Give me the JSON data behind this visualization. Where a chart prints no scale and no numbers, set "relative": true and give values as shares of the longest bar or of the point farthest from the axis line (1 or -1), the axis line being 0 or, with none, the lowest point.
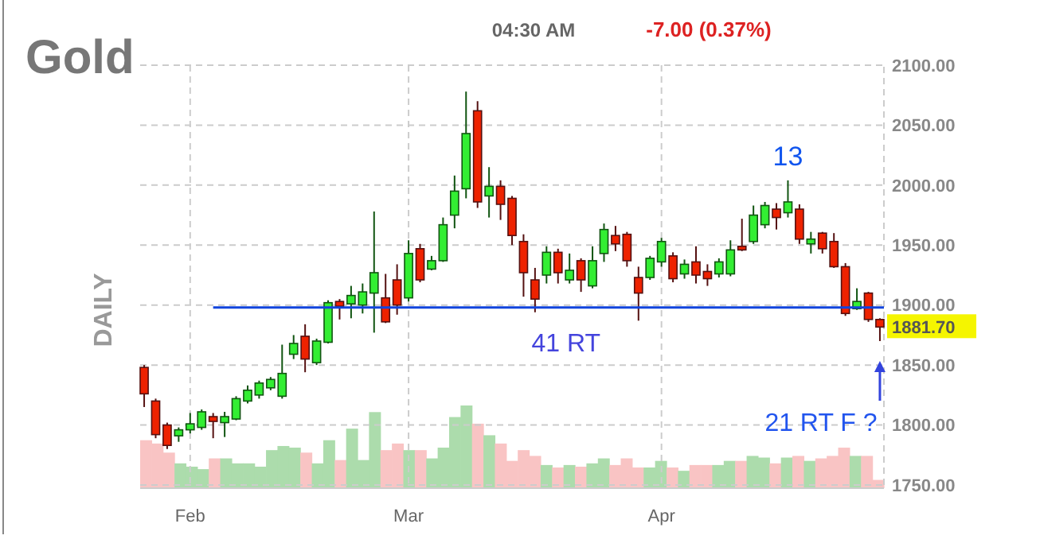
{
  "chart_data": [
    {
      "type": "candlestick",
      "title": "Gold",
      "subtitle": "04:30 AM",
      "categories": [
        null,
        null,
        null,
        null,
        "Feb",
        null,
        null,
        null,
        null,
        null,
        null,
        null,
        null,
        null,
        null,
        null,
        null,
        null,
        null,
        null,
        null,
        null,
        null,
        "Mar",
        null,
        null,
        null,
        null,
        null,
        null,
        null,
        null,
        null,
        null,
        null,
        null,
        null,
        null,
        null,
        null,
        null,
        null,
        null,
        null,
        null,
        "Apr",
        null,
        null,
        null,
        null,
        null,
        null,
        null,
        null,
        null,
        null,
        null,
        null,
        null,
        null,
        null,
        null,
        null,
        null,
        null
      ],
      "ohlc": [
        [
          1848,
          1850,
          1815,
          1826
        ],
        [
          1820,
          1822,
          1789,
          1792
        ],
        [
          1800,
          1802,
          1780,
          1783
        ],
        [
          1791,
          1798,
          1786,
          1796
        ],
        [
          1796,
          1810,
          1793,
          1801
        ],
        [
          1798,
          1813,
          1796,
          1811
        ],
        [
          1807,
          1810,
          1789,
          1803
        ],
        [
          1802,
          1811,
          1790,
          1807
        ],
        [
          1805,
          1824,
          1804,
          1822
        ],
        [
          1820,
          1833,
          1818,
          1829
        ],
        [
          1825,
          1837,
          1822,
          1835
        ],
        [
          1831,
          1840,
          1829,
          1838
        ],
        [
          1824,
          1867,
          1822,
          1843
        ],
        [
          1859,
          1875,
          1855,
          1868
        ],
        [
          1874,
          1884,
          1844,
          1855
        ],
        [
          1852,
          1872,
          1850,
          1870
        ],
        [
          1869,
          1904,
          1868,
          1902
        ],
        [
          1903,
          1905,
          1888,
          1899
        ],
        [
          1901,
          1916,
          1889,
          1908
        ],
        [
          1900,
          1918,
          1893,
          1911
        ],
        [
          1910,
          1978,
          1877,
          1927
        ],
        [
          1906,
          1926,
          1885,
          1886
        ],
        [
          1921,
          1934,
          1892,
          1900
        ],
        [
          1906,
          1954,
          1903,
          1943
        ],
        [
          1947,
          1951,
          1919,
          1921
        ],
        [
          1930,
          1941,
          1929,
          1937
        ],
        [
          1937,
          1973,
          1936,
          1967
        ],
        [
          1975,
          2008,
          1964,
          1995
        ],
        [
          1997,
          2078,
          1989,
          2043
        ],
        [
          2062,
          2070,
          1981,
          1986
        ],
        [
          1991,
          2015,
          1973,
          1999
        ],
        [
          1999,
          2004,
          1971,
          1984
        ],
        [
          1989,
          1991,
          1950,
          1958
        ],
        [
          1953,
          1959,
          1907,
          1927
        ],
        [
          1921,
          1931,
          1894,
          1905
        ],
        [
          1925,
          1949,
          1918,
          1944
        ],
        [
          1944,
          1947,
          1918,
          1927
        ],
        [
          1921,
          1943,
          1918,
          1929
        ],
        [
          1937,
          1939,
          1911,
          1921
        ],
        [
          1916,
          1949,
          1914,
          1937
        ],
        [
          1943,
          1968,
          1936,
          1963
        ],
        [
          1958,
          1966,
          1945,
          1951
        ],
        [
          1959,
          1961,
          1932,
          1937
        ],
        [
          1923,
          1932,
          1887,
          1910
        ],
        [
          1923,
          1941,
          1921,
          1939
        ],
        [
          1936,
          1956,
          1932,
          1953
        ],
        [
          1941,
          1944,
          1919,
          1922
        ],
        [
          1926,
          1938,
          1922,
          1934
        ],
        [
          1936,
          1949,
          1918,
          1925
        ],
        [
          1928,
          1934,
          1916,
          1922
        ],
        [
          1926,
          1939,
          1923,
          1936
        ],
        [
          1926,
          1954,
          1924,
          1946
        ],
        [
          1949,
          1972,
          1945,
          1946
        ],
        [
          1953,
          1983,
          1951,
          1975
        ],
        [
          1967,
          1986,
          1964,
          1983
        ],
        [
          1980,
          1985,
          1963,
          1973
        ],
        [
          1977,
          2004,
          1973,
          1986
        ],
        [
          1980,
          1984,
          1951,
          1955
        ],
        [
          1951,
          1961,
          1943,
          1955
        ],
        [
          1960,
          1961,
          1943,
          1947
        ],
        [
          1953,
          1960,
          1931,
          1932
        ],
        [
          1932,
          1935,
          1891,
          1893
        ],
        [
          1897,
          1914,
          1896,
          1903
        ],
        [
          1910,
          1911,
          1886,
          1888
        ],
        [
          1888,
          1889,
          1870,
          1881.7
        ]
      ],
      "colors": [
        "#ee2200",
        "#ee2200",
        "#ee2200",
        "#33ee33",
        "#33ee33",
        "#33ee33",
        "#ee2200",
        "#33ee33",
        "#33ee33",
        "#33ee33",
        "#33ee33",
        "#33ee33",
        "#33ee33",
        "#33ee33",
        "#ee2200",
        "#33ee33",
        "#33ee33",
        "#ee2200",
        "#33ee33",
        "#33ee33",
        "#33ee33",
        "#ee2200",
        "#ee2200",
        "#33ee33",
        "#ee2200",
        "#33ee33",
        "#33ee33",
        "#33ee33",
        "#33ee33",
        "#ee2200",
        "#33ee33",
        "#ee2200",
        "#ee2200",
        "#ee2200",
        "#ee2200",
        "#33ee33",
        "#ee2200",
        "#33ee33",
        "#ee2200",
        "#33ee33",
        "#33ee33",
        "#ee2200",
        "#ee2200",
        "#ee2200",
        "#33ee33",
        "#33ee33",
        "#ee2200",
        "#33ee33",
        "#ee2200",
        "#ee2200",
        "#33ee33",
        "#33ee33",
        "#ee2200",
        "#33ee33",
        "#33ee33",
        "#ee2200",
        "#33ee33",
        "#ee2200",
        "#33ee33",
        "#ee2200",
        "#ee2200",
        "#ee2200",
        "#33ee33",
        "#ee2200",
        "#ee2200"
      ],
      "ylim": [
        1750,
        2100
      ],
      "yticks": [
        {
          "value": 1750,
          "label": "1750.00"
        },
        {
          "value": 1800,
          "label": "1800.00"
        },
        {
          "value": 1850,
          "label": "1850.00"
        },
        {
          "value": 1900,
          "label": "1900.00"
        },
        {
          "value": 1950,
          "label": "1950.00"
        },
        {
          "value": 2000,
          "label": "2000.00"
        },
        {
          "value": 2050,
          "label": "2050.00"
        },
        {
          "value": 2100,
          "label": "2100.00"
        }
      ],
      "grid": true,
      "ref_lines": [
        {
          "axis": "y",
          "value": 1898,
          "color": "#1144dd"
        }
      ],
      "annotations": [
        "-7.00 (0.37%)",
        "DAILY",
        "13",
        "41 RT",
        "21 RT F ?",
        "1881.70"
      ]
    },
    {
      "type": "bar",
      "relative": true,
      "categories": [
        null,
        null,
        null,
        null,
        null,
        null,
        null,
        null,
        null,
        null,
        null,
        null,
        null,
        null,
        null,
        null,
        null,
        null,
        null,
        null,
        null,
        null,
        null,
        null,
        null,
        null,
        null,
        null,
        null,
        null,
        null,
        null,
        null,
        null,
        null,
        null,
        null,
        null,
        null,
        null,
        null,
        null,
        null,
        null,
        null,
        null,
        null,
        null,
        null,
        null,
        null,
        null,
        null,
        null,
        null,
        null,
        null,
        null,
        null,
        null,
        null,
        null,
        null,
        null,
        null
      ],
      "values": [
        0.58,
        0.54,
        0.43,
        0.3,
        0.26,
        0.23,
        0.36,
        0.36,
        0.3,
        0.3,
        0.26,
        0.46,
        0.51,
        0.49,
        0.43,
        0.3,
        0.58,
        0.34,
        0.72,
        0.34,
        0.92,
        0.46,
        0.54,
        0.46,
        0.46,
        0.36,
        0.49,
        0.86,
        1,
        0.78,
        0.64,
        0.54,
        0.33,
        0.46,
        0.39,
        0.28,
        0.25,
        0.28,
        0.26,
        0.3,
        0.36,
        0.28,
        0.36,
        0.25,
        0.25,
        0.33,
        0.25,
        0.21,
        0.28,
        0.28,
        0.28,
        0.33,
        0.33,
        0.39,
        0.37,
        0.3,
        0.37,
        0.39,
        0.33,
        0.36,
        0.39,
        0.49,
        0.39,
        0.39,
        0.1
      ],
      "colors": [
        "#f9c4c4",
        "#f9c4c4",
        "#f9c4c4",
        "#acdcac",
        "#acdcac",
        "#acdcac",
        "#f9c4c4",
        "#acdcac",
        "#acdcac",
        "#acdcac",
        "#acdcac",
        "#acdcac",
        "#acdcac",
        "#acdcac",
        "#f9c4c4",
        "#acdcac",
        "#acdcac",
        "#f9c4c4",
        "#acdcac",
        "#acdcac",
        "#acdcac",
        "#f9c4c4",
        "#f9c4c4",
        "#acdcac",
        "#f9c4c4",
        "#acdcac",
        "#acdcac",
        "#acdcac",
        "#acdcac",
        "#f9c4c4",
        "#acdcac",
        "#f9c4c4",
        "#f9c4c4",
        "#f9c4c4",
        "#f9c4c4",
        "#acdcac",
        "#f9c4c4",
        "#acdcac",
        "#f9c4c4",
        "#acdcac",
        "#acdcac",
        "#f9c4c4",
        "#f9c4c4",
        "#f9c4c4",
        "#acdcac",
        "#acdcac",
        "#f9c4c4",
        "#acdcac",
        "#f9c4c4",
        "#f9c4c4",
        "#acdcac",
        "#acdcac",
        "#f9c4c4",
        "#acdcac",
        "#acdcac",
        "#f9c4c4",
        "#acdcac",
        "#f9c4c4",
        "#acdcac",
        "#f9c4c4",
        "#f9c4c4",
        "#f9c4c4",
        "#acdcac",
        "#f9c4c4",
        "#f9c4c4"
      ]
    }
  ]
}
